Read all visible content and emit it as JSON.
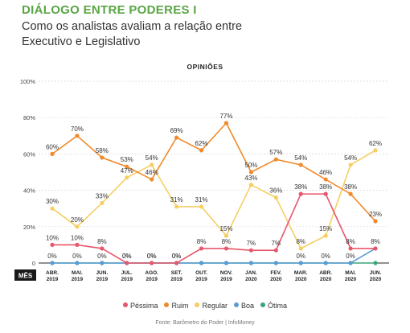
{
  "header": {
    "title": "DIÁLOGO ENTRE PODERES I",
    "subtitle": "Como os analistas avaliam a relação entre Executivo e Legislativo"
  },
  "chart_data": {
    "type": "line",
    "title": "OPINIÕES",
    "xlabel": "MÊS",
    "ylabel": "",
    "ylim": [
      0,
      100
    ],
    "yticks": [
      "0",
      "20%",
      "40%",
      "60%",
      "80%",
      "100%"
    ],
    "yticks_values": [
      0,
      20,
      40,
      60,
      80,
      100
    ],
    "grid": true,
    "legend_position": "bottom",
    "categories": [
      [
        "ABR.",
        "2019"
      ],
      [
        "MAI.",
        "2019"
      ],
      [
        "JUN.",
        "2019"
      ],
      [
        "JUL.",
        "2019"
      ],
      [
        "AGO.",
        "2019"
      ],
      [
        "SET.",
        "2019"
      ],
      [
        "OUT.",
        "2019"
      ],
      [
        "NOV.",
        "2019"
      ],
      [
        "JAN.",
        "2020"
      ],
      [
        "FEV.",
        "2020"
      ],
      [
        "MAR.",
        "2020"
      ],
      [
        "ABR.",
        "2020"
      ],
      [
        "MAI.",
        "2020"
      ],
      [
        "JUN.",
        "2020"
      ]
    ],
    "series": [
      {
        "name": "Péssima",
        "color": "#e8566b",
        "values": [
          10,
          10,
          8,
          0,
          0,
          0,
          8,
          8,
          7,
          7,
          38,
          38,
          8,
          8
        ],
        "labels": [
          "10%",
          "10%",
          "8%",
          "0%",
          "0%",
          "0%",
          "8%",
          "8%",
          "7%",
          "7%",
          "38%",
          "38%",
          "8%",
          ""
        ]
      },
      {
        "name": "Ruim",
        "color": "#f08a2c",
        "values": [
          60,
          70,
          58,
          53,
          46,
          69,
          62,
          77,
          50,
          57,
          54,
          46,
          38,
          23
        ],
        "labels": [
          "60%",
          "70%",
          "58%",
          "53%",
          "46%",
          "69%",
          "62%",
          "77%",
          "50%",
          "57%",
          "54%",
          "46%",
          "38%",
          "23%"
        ]
      },
      {
        "name": "Regular",
        "color": "#f5cf63",
        "values": [
          30,
          20,
          33,
          47,
          54,
          31,
          31,
          15,
          43,
          36,
          8,
          15,
          54,
          62
        ],
        "labels": [
          "30%",
          "20%",
          "33%",
          "47%",
          "54%",
          "31%",
          "31%",
          "15%",
          "43%",
          "36%",
          "8%",
          "15%",
          "54%",
          "62%"
        ]
      },
      {
        "name": "Boa",
        "color": "#5b9bd5",
        "values": [
          0,
          0,
          0,
          0,
          0,
          0,
          0,
          0,
          0,
          0,
          0,
          0,
          0,
          8
        ],
        "labels": [
          "0%",
          "0%",
          "0%",
          "0%",
          "0%",
          "0%",
          "",
          "",
          "",
          "",
          "0%",
          "0%",
          "0%",
          "8%"
        ]
      },
      {
        "name": "Ótima",
        "color": "#3aa57a",
        "values": [
          0,
          0,
          0,
          0,
          0,
          0,
          0,
          0,
          0,
          0,
          0,
          0,
          0,
          0
        ],
        "labels": []
      }
    ]
  },
  "source": "Fonte: Barômetro do Poder | InfoMoney"
}
